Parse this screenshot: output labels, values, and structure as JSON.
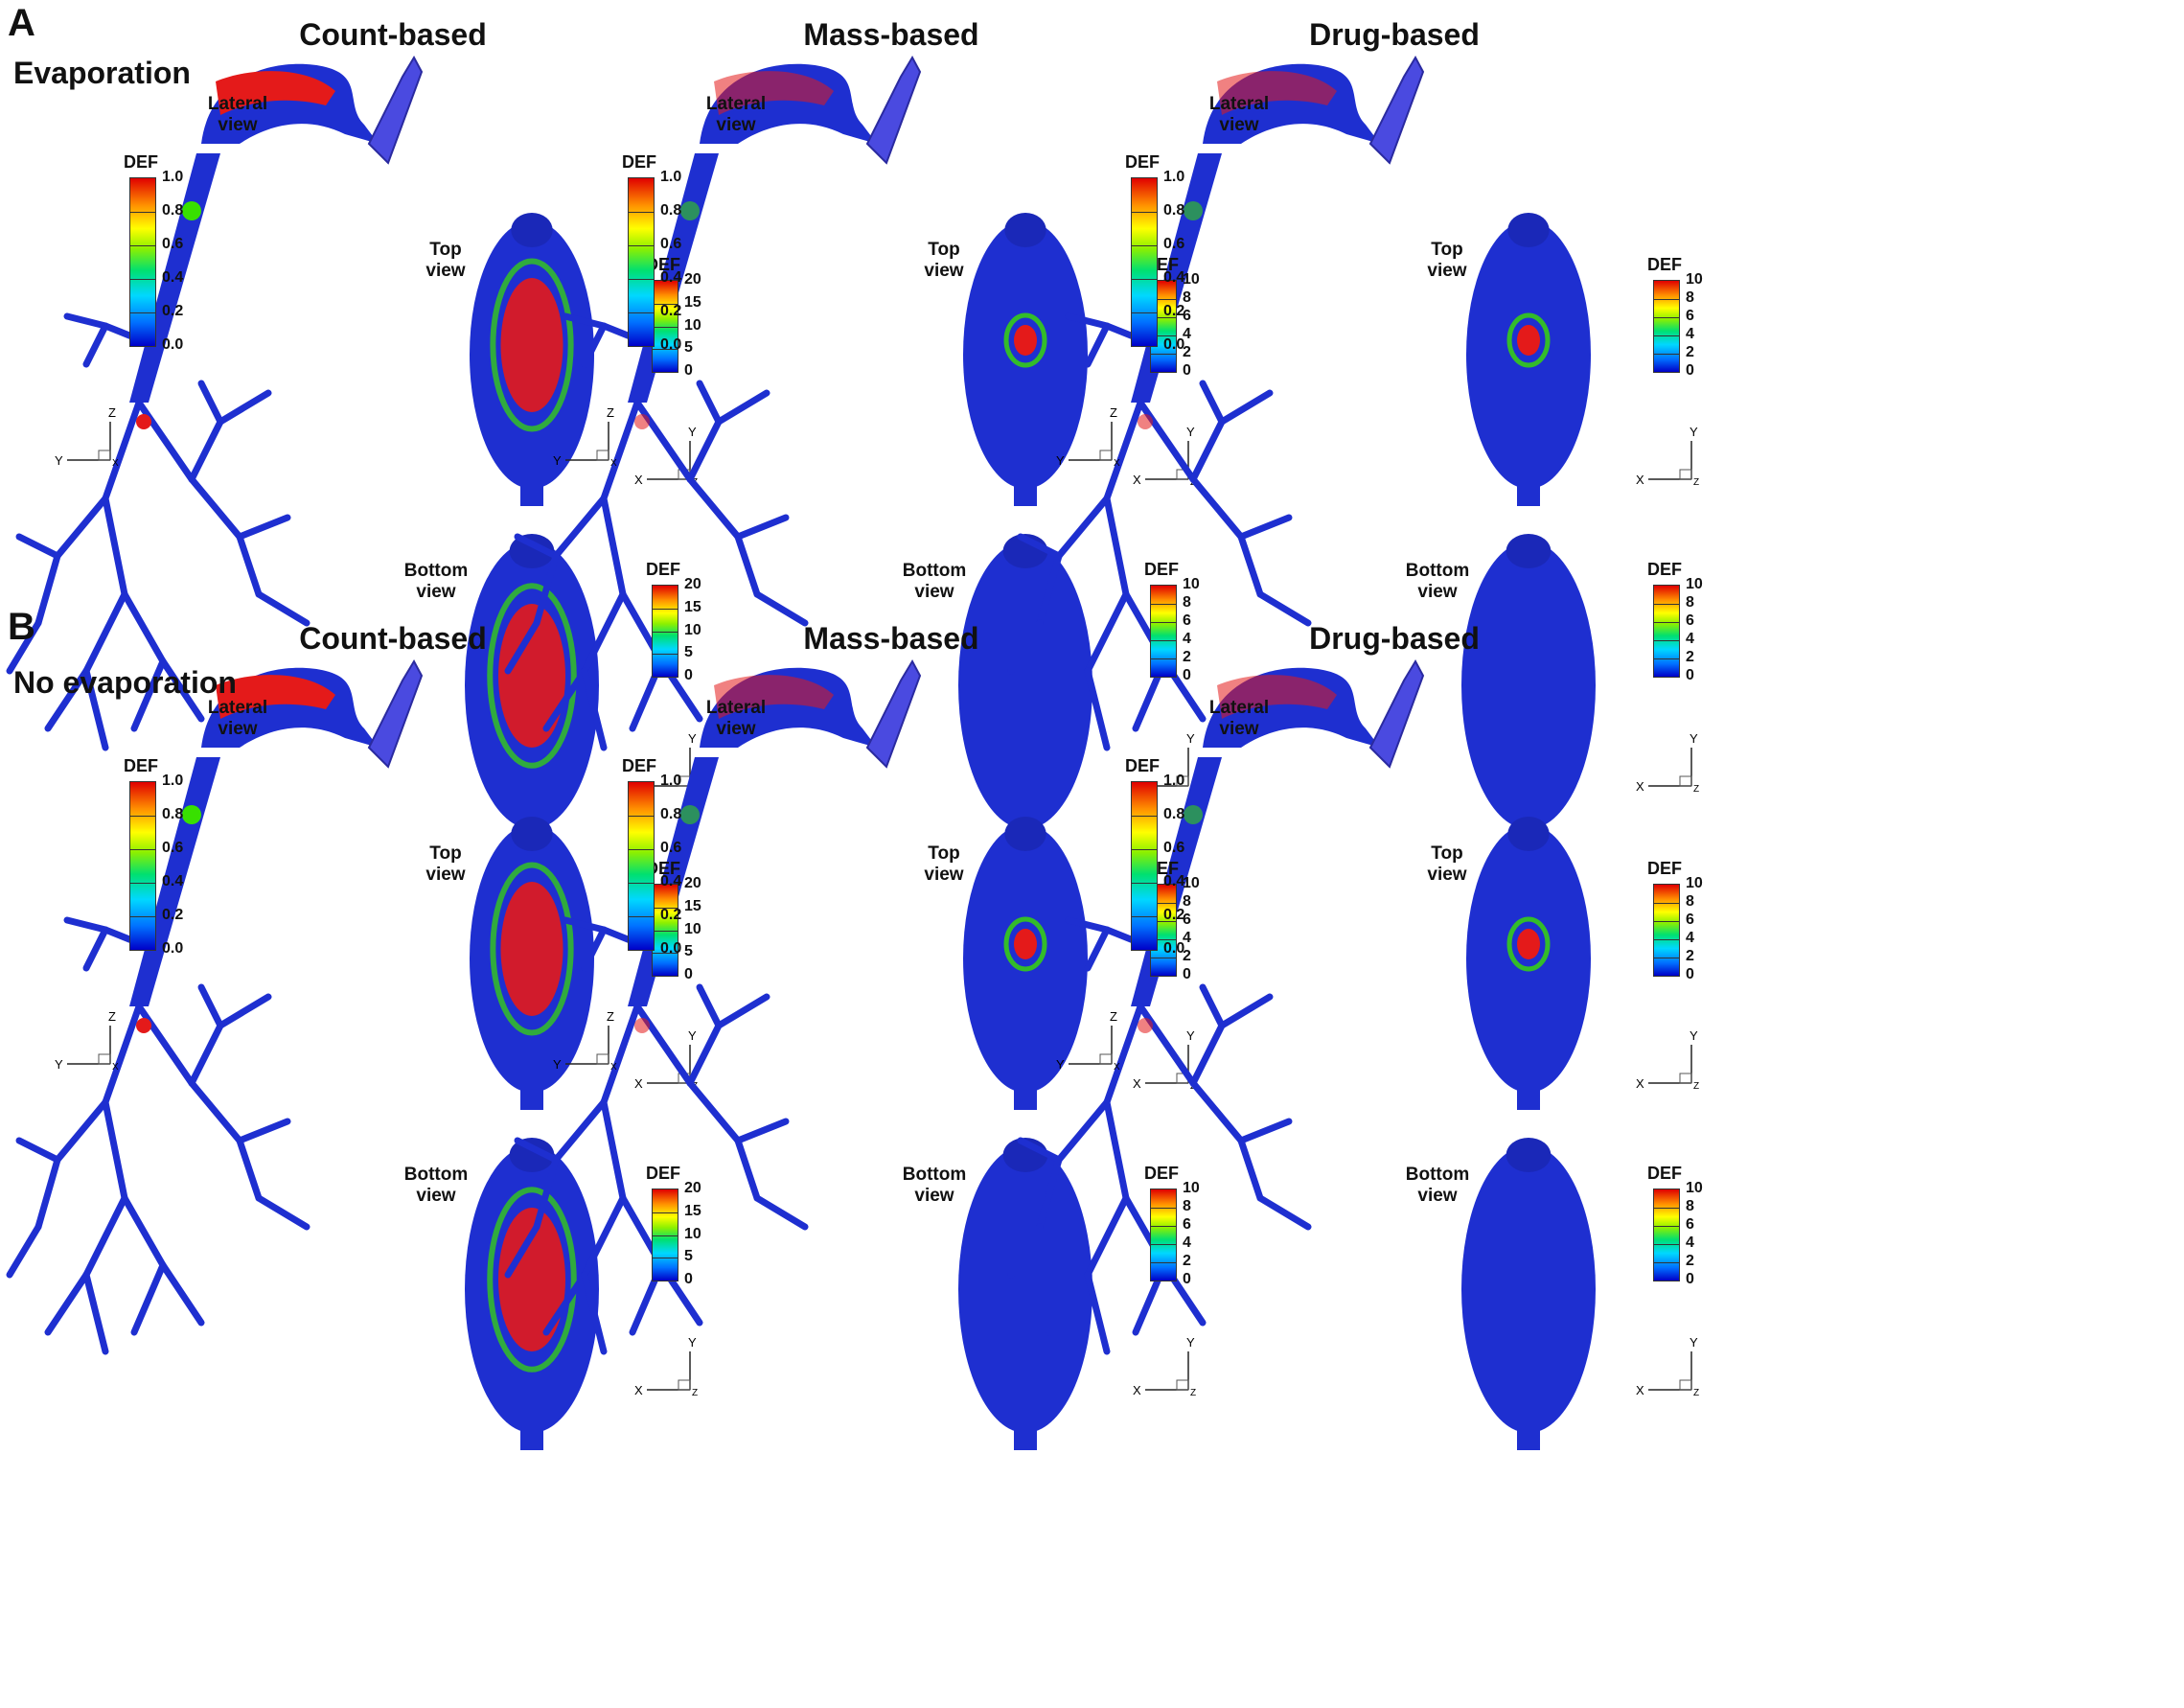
{
  "colorbar_title": "DEF",
  "view_labels": {
    "lateral": [
      "Lateral",
      "view"
    ],
    "top": [
      "Top",
      "view"
    ],
    "bottom": [
      "Bottom",
      "view"
    ]
  },
  "colorbar_scales": {
    "lateral": [
      "1.0",
      "0.8",
      "0.6",
      "0.4",
      "0.2",
      "0.0"
    ],
    "count": [
      "20",
      "15",
      "10",
      "5",
      "0"
    ],
    "deposit": [
      "10",
      "8",
      "6",
      "4",
      "2",
      "0"
    ]
  },
  "panels": [
    {
      "letter": "A",
      "condition": "Evaporation",
      "columns": [
        "Count-based",
        "Mass-based",
        "Drug-based"
      ]
    },
    {
      "letter": "B",
      "condition": "No evaporation",
      "columns": [
        "Count-based",
        "Mass-based",
        "Drug-based"
      ]
    }
  ],
  "axes": {
    "lateral": [
      "Z",
      "Y",
      "X"
    ],
    "top": [
      "Y",
      "X",
      "Z"
    ],
    "bottom": [
      "Y",
      "X",
      "Z"
    ]
  },
  "colors": {
    "base": "#1e2fd0",
    "hot": "#e41a1a",
    "warm": "#38e000",
    "cool": "#00c8ff"
  }
}
